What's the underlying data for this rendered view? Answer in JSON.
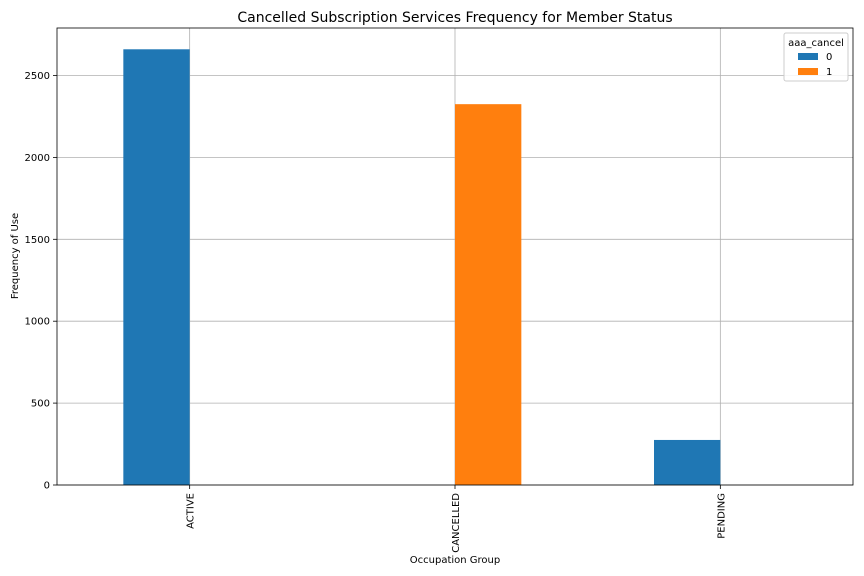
{
  "chart_data": {
    "type": "bar",
    "title": "Cancelled Subscription Services Frequency for Member Status",
    "xlabel": "Occupation Group",
    "ylabel": "Frequency of Use",
    "categories": [
      "ACTIVE",
      "CANCELLED",
      "PENDING"
    ],
    "series": [
      {
        "name": "0",
        "values": [
          2660,
          0,
          275
        ],
        "color": "#1f77b4"
      },
      {
        "name": "1",
        "values": [
          0,
          2325,
          0
        ],
        "color": "#ff7f0e"
      }
    ],
    "ylim": [
      0,
      2790
    ],
    "yticks": [
      0,
      500,
      1000,
      1500,
      2000,
      2500
    ],
    "grid": true,
    "legend": {
      "title": "aaa_cancel",
      "placement": "top-right"
    }
  }
}
